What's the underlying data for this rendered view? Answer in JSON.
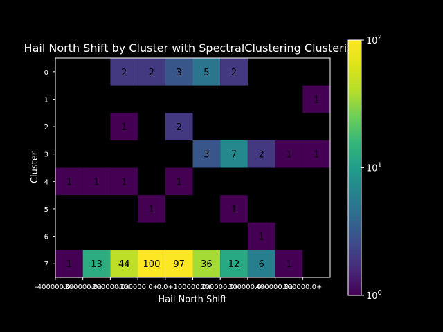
{
  "chart_data": {
    "type": "heatmap",
    "title": "Hail North Shift by Cluster with SpectralClustering Clustering",
    "xlabel": "Hail North Shift",
    "ylabel": "Cluster",
    "x_tick_labels": [
      "-400000.0+",
      "-300000.0+",
      "-200000.0+",
      "-100000.0+",
      "0.0+",
      "100000.0+",
      "200000.0+",
      "300000.0+",
      "400000.0+",
      "500000.0+"
    ],
    "y_tick_labels": [
      "0",
      "1",
      "2",
      "3",
      "4",
      "5",
      "6",
      "7"
    ],
    "values": [
      [
        null,
        null,
        2,
        2,
        3,
        5,
        2,
        null,
        null,
        null
      ],
      [
        null,
        null,
        null,
        null,
        null,
        null,
        null,
        null,
        null,
        1
      ],
      [
        null,
        null,
        1,
        null,
        2,
        null,
        null,
        null,
        null,
        null
      ],
      [
        null,
        null,
        null,
        null,
        null,
        3,
        7,
        2,
        1,
        1
      ],
      [
        1,
        1,
        1,
        null,
        1,
        null,
        null,
        null,
        null,
        null
      ],
      [
        null,
        null,
        null,
        1,
        null,
        null,
        1,
        null,
        null,
        null
      ],
      [
        null,
        null,
        null,
        null,
        null,
        null,
        null,
        1,
        null,
        null
      ],
      [
        1,
        13,
        44,
        100,
        97,
        36,
        12,
        6,
        1,
        null
      ]
    ],
    "colormap": "viridis",
    "color_scale": "log",
    "color_range": [
      1,
      100
    ],
    "colorbar_ticks": [
      {
        "value": 1,
        "base": "10",
        "exp": "0"
      },
      {
        "value": 10,
        "base": "10",
        "exp": "1"
      },
      {
        "value": 100,
        "base": "10",
        "exp": "2"
      }
    ],
    "grid": false
  },
  "colors": {
    "background": "#000000",
    "axes_face": "#000000",
    "foreground": "#ffffff",
    "cell_text": "#000000"
  }
}
